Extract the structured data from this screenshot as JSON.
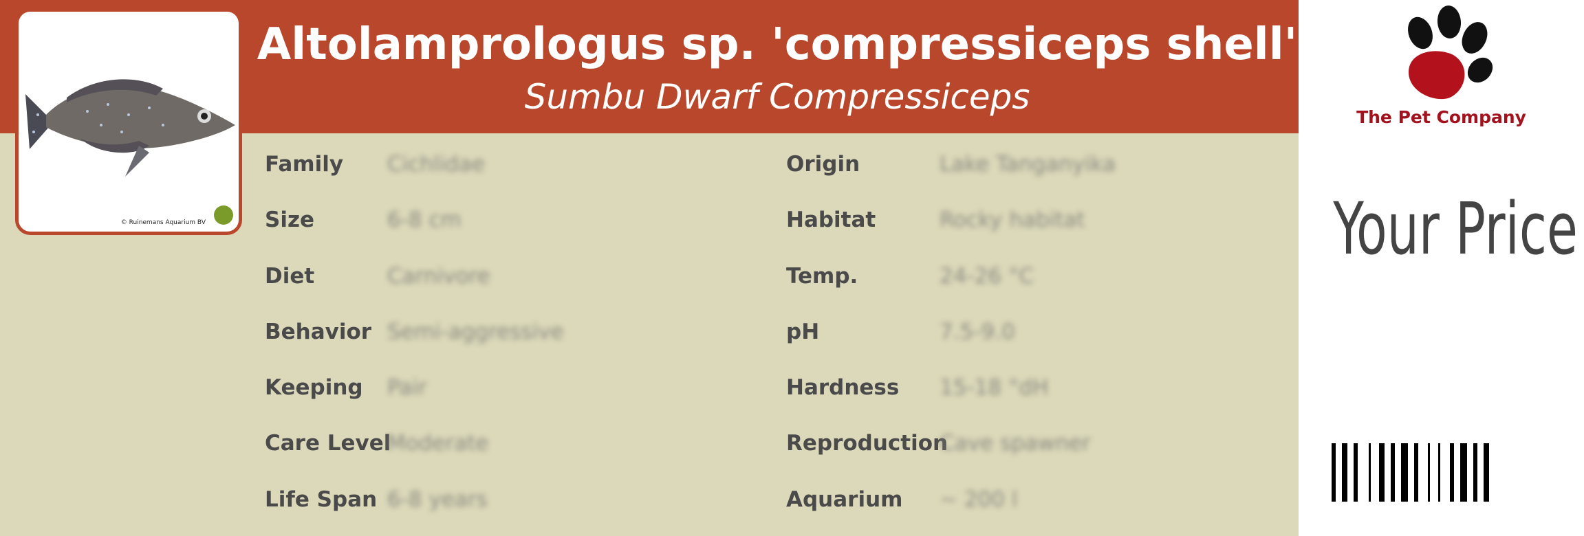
{
  "header": {
    "title": "Altolamprologus sp. 'compressiceps shell'",
    "subtitle": "Sumbu Dwarf Compressiceps"
  },
  "photo": {
    "credit": "© Ruinemans Aquarium BV"
  },
  "details": {
    "left": [
      {
        "label": "Family",
        "value": "Cichlidae"
      },
      {
        "label": "Size",
        "value": "6-8 cm"
      },
      {
        "label": "Diet",
        "value": "Carnivore"
      },
      {
        "label": "Behavior",
        "value": "Semi-aggressive"
      },
      {
        "label": "Keeping",
        "value": "Pair"
      },
      {
        "label": "Care Level",
        "value": "Moderate"
      },
      {
        "label": "Life Span",
        "value": "6-8 years"
      }
    ],
    "right": [
      {
        "label": "Origin",
        "value": "Lake Tanganyika"
      },
      {
        "label": "Habitat",
        "value": "Rocky habitat"
      },
      {
        "label": "Temp.",
        "value": "24-26 °C"
      },
      {
        "label": "pH",
        "value": "7.5-9.0"
      },
      {
        "label": "Hardness",
        "value": "15-18 °dH"
      },
      {
        "label": "Reproduction",
        "value": "Cave spawner"
      },
      {
        "label": "Aquarium",
        "value": "~ 200 l"
      }
    ]
  },
  "logo": {
    "name": "The Pet Company"
  },
  "price": {
    "label": "Your Price"
  }
}
